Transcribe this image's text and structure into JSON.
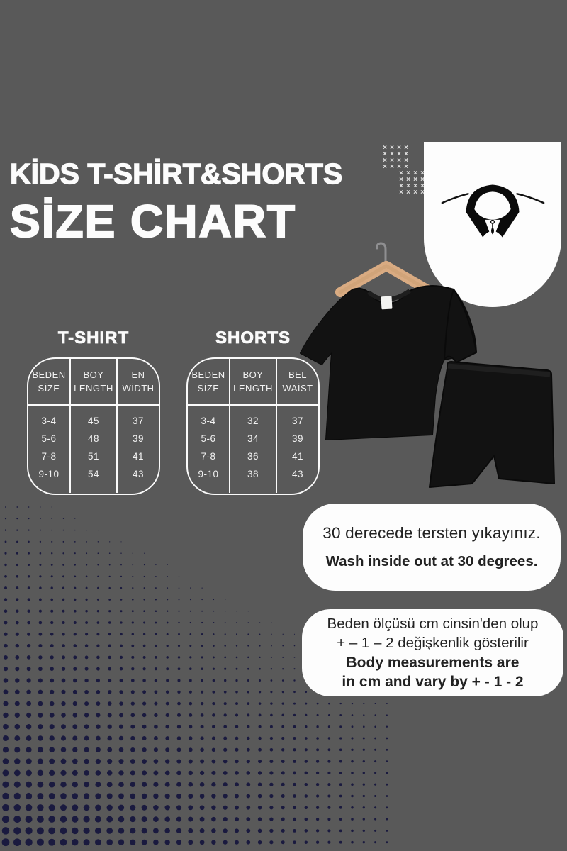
{
  "poster": {
    "title_line1": "KİDS T-SHİRT&SHORTS",
    "title_line2": "SİZE CHART"
  },
  "tshirt_table": {
    "label": "T-SHIRT",
    "headers": [
      {
        "l1": "BEDEN",
        "l2": "SİZE"
      },
      {
        "l1": "BOY",
        "l2": "LENGTH"
      },
      {
        "l1": "EN",
        "l2": "WİDTH"
      }
    ],
    "rows": [
      [
        "3-4",
        "45",
        "37"
      ],
      [
        "5-6",
        "48",
        "39"
      ],
      [
        "7-8",
        "51",
        "41"
      ],
      [
        "9-10",
        "54",
        "43"
      ]
    ]
  },
  "shorts_table": {
    "label": "SHORTS",
    "headers": [
      {
        "l1": "BEDEN",
        "l2": "SİZE"
      },
      {
        "l1": "BOY",
        "l2": "LENGTH"
      },
      {
        "l1": "BEL",
        "l2": "WAİST"
      }
    ],
    "rows": [
      [
        "3-4",
        "32",
        "37"
      ],
      [
        "5-6",
        "34",
        "39"
      ],
      [
        "7-8",
        "36",
        "41"
      ],
      [
        "9-10",
        "38",
        "43"
      ]
    ]
  },
  "wash_note": {
    "tr": "30 derecede tersten yıkayınız.",
    "en": "Wash inside out at 30 degrees."
  },
  "measure_note": {
    "tr1": "Beden ölçüsü cm cinsin'den olup",
    "tr2": "+ – 1 – 2 değişkenlik gösterilir",
    "en1": "Body measurements are",
    "en2": "in cm and vary by + - 1 - 2"
  },
  "icons": {
    "collar": "shirt-collar-icon",
    "hanger": "clothes-hanger-icon"
  },
  "colors": {
    "background": "#595959",
    "halftone_dot": "#15153d",
    "panel": "#fdfdfd",
    "text_light": "#f2f2f2",
    "text_dark": "#222222",
    "garment": "#121212",
    "hanger_wood": "#d9ab82"
  }
}
